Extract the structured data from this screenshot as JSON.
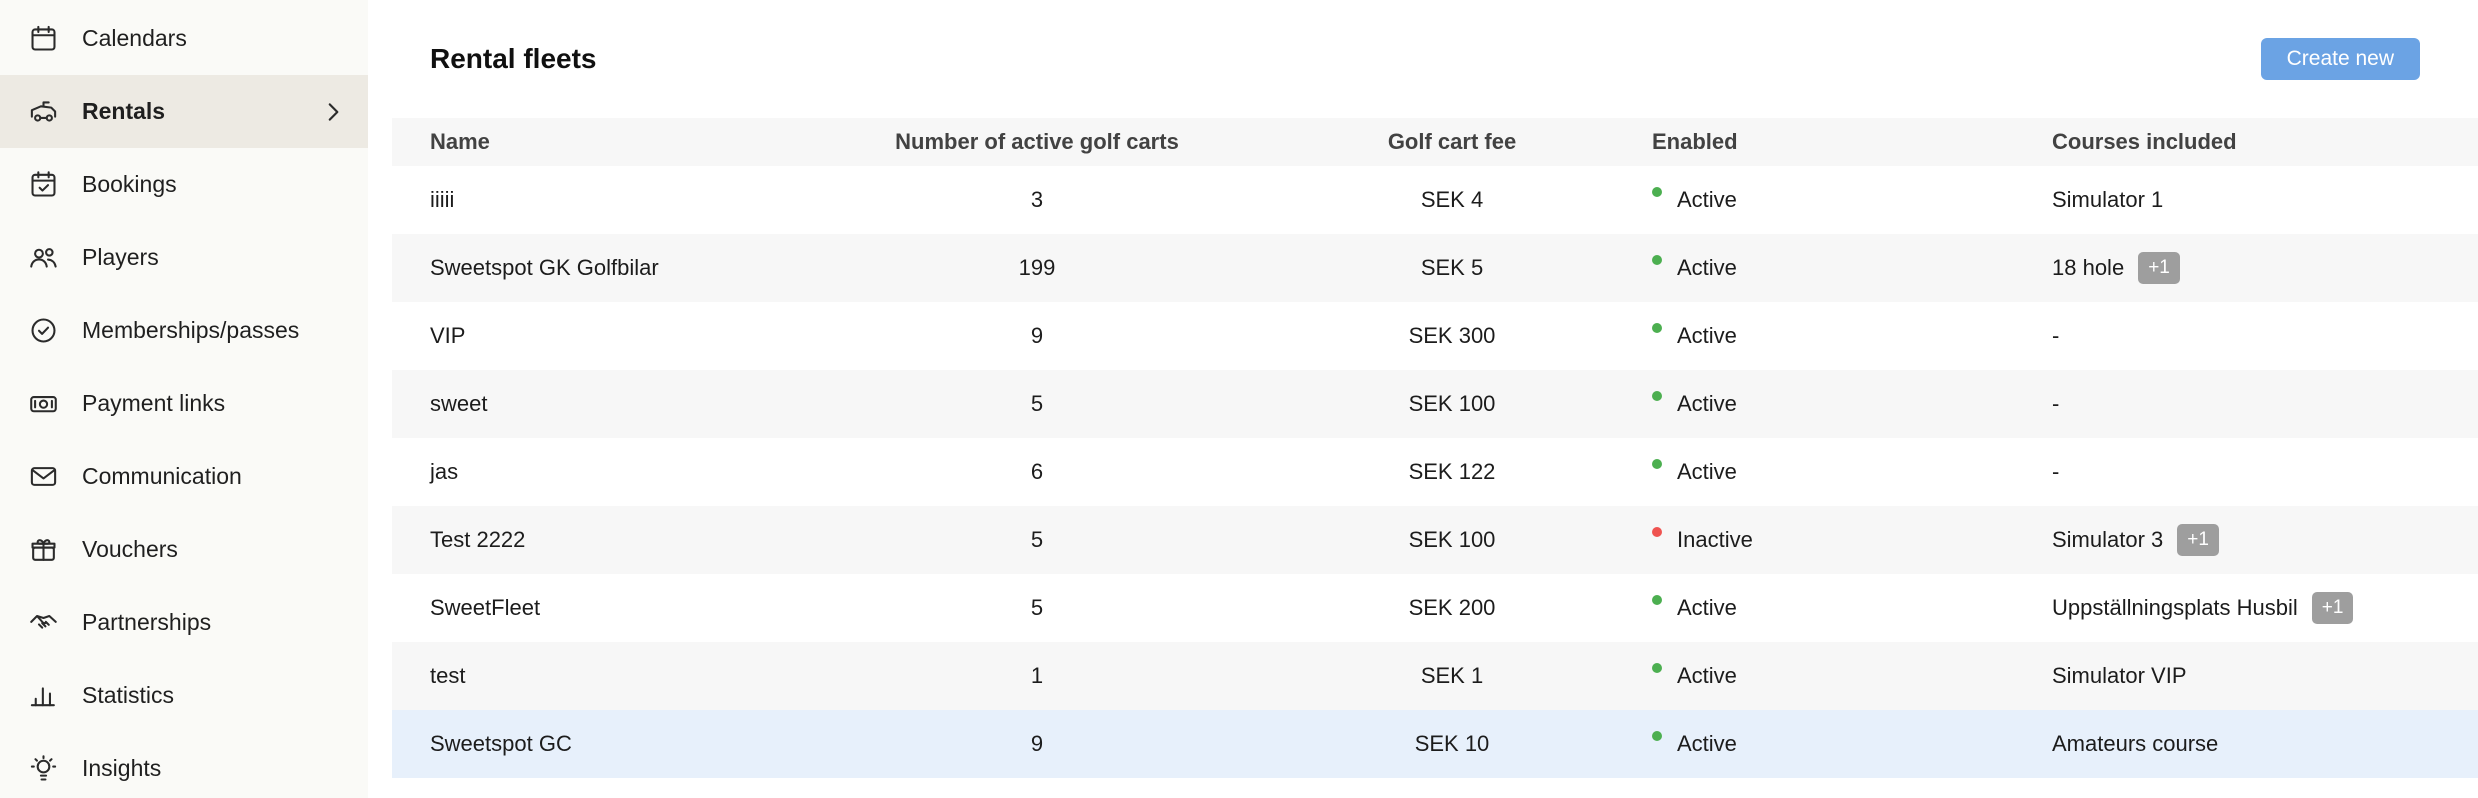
{
  "sidebar": {
    "items": [
      {
        "label": "Calendars",
        "icon": "calendars-icon",
        "active": false
      },
      {
        "label": "Rentals",
        "icon": "golf-cart-icon",
        "active": true
      },
      {
        "label": "Bookings",
        "icon": "calendar-check-icon",
        "active": false
      },
      {
        "label": "Players",
        "icon": "people-icon",
        "active": false
      },
      {
        "label": "Memberships/passes",
        "icon": "check-circle-icon",
        "active": false
      },
      {
        "label": "Payment links",
        "icon": "payment-icon",
        "active": false
      },
      {
        "label": "Communication",
        "icon": "envelope-icon",
        "active": false
      },
      {
        "label": "Vouchers",
        "icon": "gift-icon",
        "active": false
      },
      {
        "label": "Partnerships",
        "icon": "handshake-icon",
        "active": false
      },
      {
        "label": "Statistics",
        "icon": "bar-chart-icon",
        "active": false
      },
      {
        "label": "Insights",
        "icon": "lightbulb-icon",
        "active": false
      }
    ]
  },
  "header": {
    "title": "Rental fleets",
    "create_button": "Create new"
  },
  "table": {
    "columns": [
      "Name",
      "Number of active golf carts",
      "Golf cart fee",
      "Enabled",
      "Courses included"
    ],
    "rows": [
      {
        "name": "iiiii",
        "carts": "3",
        "fee": "SEK 4",
        "status": "Active",
        "courses": "Simulator 1",
        "badge": "",
        "highlighted": false
      },
      {
        "name": "Sweetspot GK Golfbilar",
        "carts": "199",
        "fee": "SEK 5",
        "status": "Active",
        "courses": "18 hole",
        "badge": "+1",
        "highlighted": false
      },
      {
        "name": "VIP",
        "carts": "9",
        "fee": "SEK 300",
        "status": "Active",
        "courses": "-",
        "badge": "",
        "highlighted": false
      },
      {
        "name": "sweet",
        "carts": "5",
        "fee": "SEK 100",
        "status": "Active",
        "courses": "-",
        "badge": "",
        "highlighted": false
      },
      {
        "name": "jas",
        "carts": "6",
        "fee": "SEK 122",
        "status": "Active",
        "courses": "-",
        "badge": "",
        "highlighted": false
      },
      {
        "name": "Test 2222",
        "carts": "5",
        "fee": "SEK 100",
        "status": "Inactive",
        "courses": "Simulator 3",
        "badge": "+1",
        "highlighted": false
      },
      {
        "name": "SweetFleet",
        "carts": "5",
        "fee": "SEK 200",
        "status": "Active",
        "courses": "Uppställningsplats Husbil",
        "badge": "+1",
        "highlighted": false
      },
      {
        "name": "test",
        "carts": "1",
        "fee": "SEK 1",
        "status": "Active",
        "courses": "Simulator VIP",
        "badge": "",
        "highlighted": false
      },
      {
        "name": "Sweetspot GC",
        "carts": "9",
        "fee": "SEK 10",
        "status": "Active",
        "courses": "Amateurs course",
        "badge": "",
        "highlighted": true
      }
    ]
  },
  "colors": {
    "accent_blue": "#6ba3e4",
    "active_dot": "#4caf50",
    "inactive_dot": "#ef5350",
    "highlight_row": "#e7f0fb",
    "badge_bg": "#9e9e9e",
    "sidebar_bg": "#fafaf7",
    "sidebar_active_bg": "#edeae3"
  }
}
